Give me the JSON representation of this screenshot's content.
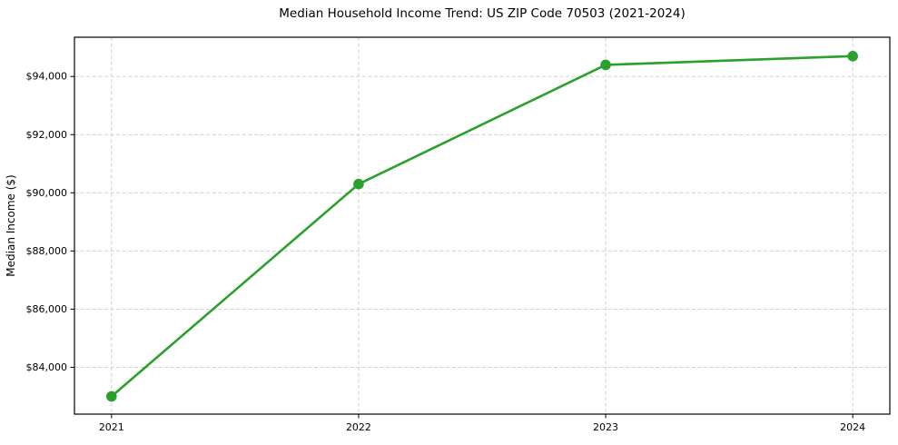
{
  "title": "Median Household Income Trend: US ZIP Code 70503 (2021-2024)",
  "chart_data": {
    "type": "line",
    "title": "Median Household Income Trend: US ZIP Code 70503 (2021-2024)",
    "xlabel": "",
    "ylabel": "Median Income ($)",
    "x": [
      2021,
      2022,
      2023,
      2024
    ],
    "xtick_labels": [
      "2021",
      "2022",
      "2023",
      "2024"
    ],
    "series": [
      {
        "name": "Median Household Income",
        "color": "#2ca02c",
        "values": [
          83000,
          90300,
          94400,
          94700
        ]
      }
    ],
    "yticks": [
      84000,
      86000,
      88000,
      90000,
      92000,
      94000
    ],
    "ytick_labels": [
      "$84,000",
      "$86,000",
      "$88,000",
      "$90,000",
      "$92,000",
      "$94,000"
    ],
    "xlim": [
      2020.85,
      2024.15
    ],
    "ylim": [
      82390,
      95350
    ],
    "grid": true,
    "grid_style": "dashed",
    "grid_color": "#cccccc",
    "axis_color": "#000000",
    "background": "#ffffff",
    "legend": "none",
    "marker": "circle",
    "line_width": 2.6,
    "marker_radius": 5.8
  }
}
